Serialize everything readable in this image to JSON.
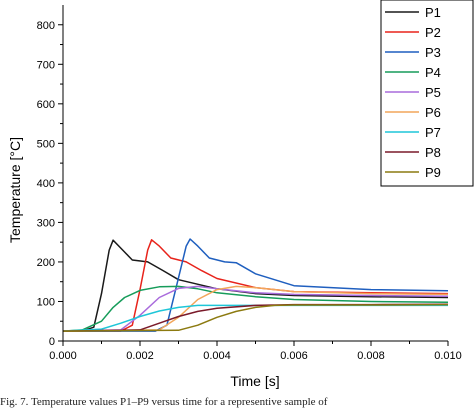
{
  "chart_data": {
    "type": "line",
    "xlabel": "Time [s]",
    "ylabel": "Temperature [°C]",
    "xlim": [
      0,
      0.01
    ],
    "ylim": [
      0,
      850
    ],
    "x_ticks": [
      "0.000",
      "0.002",
      "0.004",
      "0.006",
      "0.008",
      "0.010"
    ],
    "y_ticks": [
      "0",
      "100",
      "200",
      "300",
      "400",
      "500",
      "600",
      "700",
      "800"
    ],
    "legend_position": "top-right",
    "series": [
      {
        "name": "P1",
        "color": "#1a1a1a",
        "x": [
          0,
          0.0005,
          0.0008,
          0.001,
          0.0012,
          0.0013,
          0.0015,
          0.0018,
          0.0022,
          0.0026,
          0.003,
          0.004,
          0.005,
          0.006,
          0.008,
          0.01
        ],
        "y": [
          25,
          25,
          35,
          120,
          230,
          255,
          235,
          205,
          200,
          178,
          155,
          132,
          120,
          115,
          112,
          110
        ]
      },
      {
        "name": "P2",
        "color": "#e8231b",
        "x": [
          0,
          0.0015,
          0.0018,
          0.002,
          0.0022,
          0.0023,
          0.0025,
          0.0028,
          0.0032,
          0.0036,
          0.004,
          0.005,
          0.006,
          0.008,
          0.01
        ],
        "y": [
          25,
          25,
          40,
          130,
          230,
          256,
          240,
          210,
          200,
          178,
          158,
          135,
          125,
          122,
          120
        ]
      },
      {
        "name": "P3",
        "color": "#1f5fbf",
        "x": [
          0,
          0.0024,
          0.0027,
          0.003,
          0.0032,
          0.0033,
          0.0035,
          0.0038,
          0.0042,
          0.0045,
          0.005,
          0.006,
          0.008,
          0.01
        ],
        "y": [
          25,
          25,
          40,
          160,
          240,
          258,
          240,
          210,
          200,
          198,
          170,
          140,
          130,
          127
        ]
      },
      {
        "name": "P4",
        "color": "#169c5a",
        "x": [
          0,
          0.0005,
          0.001,
          0.0013,
          0.0016,
          0.002,
          0.0025,
          0.003,
          0.0035,
          0.004,
          0.005,
          0.006,
          0.008,
          0.01
        ],
        "y": [
          25,
          28,
          50,
          85,
          110,
          128,
          137,
          138,
          132,
          122,
          112,
          105,
          100,
          98
        ]
      },
      {
        "name": "P5",
        "color": "#a96bdc",
        "x": [
          0,
          0.0015,
          0.002,
          0.0025,
          0.003,
          0.0035,
          0.004,
          0.005,
          0.006,
          0.008,
          0.01
        ],
        "y": [
          25,
          28,
          65,
          110,
          133,
          138,
          132,
          122,
          118,
          115,
          113
        ]
      },
      {
        "name": "P6",
        "color": "#f2a65a",
        "x": [
          0,
          0.0025,
          0.003,
          0.0035,
          0.004,
          0.0045,
          0.005,
          0.006,
          0.008,
          0.01
        ],
        "y": [
          25,
          28,
          60,
          105,
          130,
          138,
          135,
          125,
          120,
          118
        ]
      },
      {
        "name": "P7",
        "color": "#1ec6d8",
        "x": [
          0,
          0.001,
          0.0015,
          0.002,
          0.0025,
          0.003,
          0.0035,
          0.004,
          0.005,
          0.006,
          0.008,
          0.01
        ],
        "y": [
          25,
          30,
          45,
          62,
          76,
          85,
          90,
          90,
          90,
          90,
          90,
          90
        ]
      },
      {
        "name": "P8",
        "color": "#7a1a2a",
        "x": [
          0,
          0.002,
          0.0025,
          0.003,
          0.0035,
          0.004,
          0.005,
          0.006,
          0.008,
          0.01
        ],
        "y": [
          25,
          28,
          45,
          62,
          75,
          83,
          90,
          92,
          92,
          93
        ]
      },
      {
        "name": "P9",
        "color": "#8c7a10",
        "x": [
          0,
          0.003,
          0.0035,
          0.004,
          0.0045,
          0.005,
          0.0055,
          0.006,
          0.008,
          0.01
        ],
        "y": [
          25,
          27,
          40,
          60,
          75,
          85,
          90,
          91,
          91,
          92
        ]
      }
    ]
  },
  "caption": "Fig. 7.   Temperature values P1–P9 versus time for a representive sample of"
}
